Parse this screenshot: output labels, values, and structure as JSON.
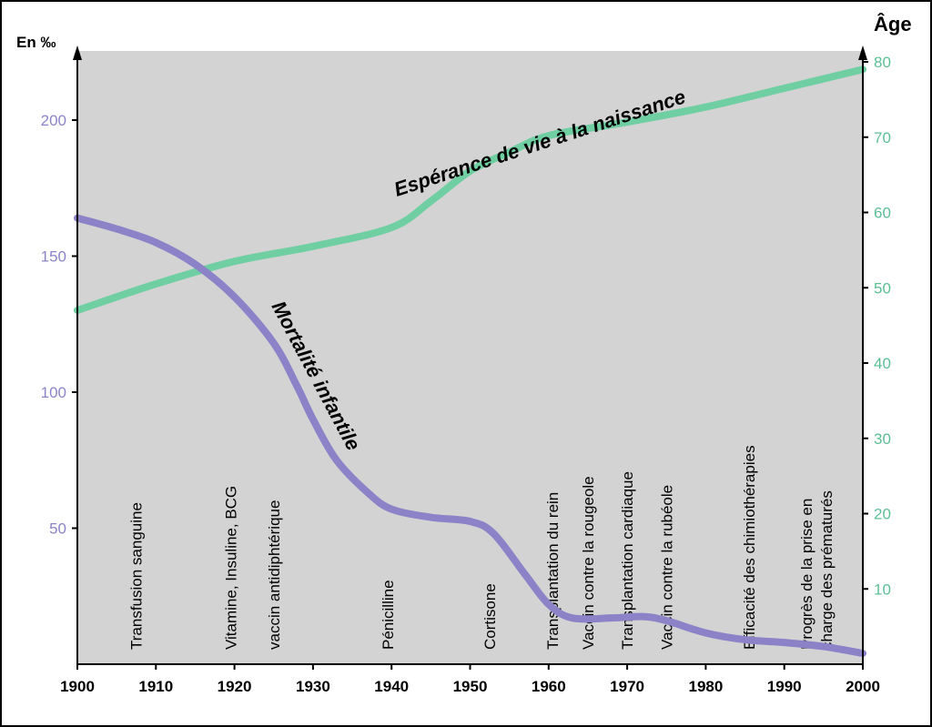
{
  "chart_data": {
    "type": "line",
    "left_axis": {
      "title": "En ‰",
      "ticks": [
        50,
        100,
        150,
        200
      ],
      "range": [
        0,
        225
      ]
    },
    "right_axis": {
      "title": "Âge",
      "ticks": [
        10,
        20,
        30,
        40,
        50,
        60,
        70,
        80
      ],
      "range": [
        0,
        83
      ]
    },
    "x_axis": {
      "ticks": [
        1900,
        1910,
        1920,
        1930,
        1940,
        1950,
        1960,
        1970,
        1980,
        1990,
        2000
      ],
      "range": [
        1900,
        2000
      ]
    },
    "series": [
      {
        "name": "Espérance de vie à la naissance",
        "axis": "right",
        "color": "#6fcfa2",
        "points": [
          [
            1900,
            47
          ],
          [
            1910,
            50.5
          ],
          [
            1920,
            53.5
          ],
          [
            1930,
            55.5
          ],
          [
            1940,
            58
          ],
          [
            1945,
            61.5
          ],
          [
            1950,
            65.5
          ],
          [
            1955,
            68
          ],
          [
            1960,
            70.2
          ],
          [
            1970,
            72
          ],
          [
            1980,
            74
          ],
          [
            1990,
            76.5
          ],
          [
            2000,
            79
          ]
        ]
      },
      {
        "name": "Mortalité infantile",
        "axis": "left",
        "color": "#8b82c8",
        "points": [
          [
            1900,
            164
          ],
          [
            1905,
            160
          ],
          [
            1910,
            155
          ],
          [
            1915,
            147
          ],
          [
            1920,
            135
          ],
          [
            1925,
            118
          ],
          [
            1928,
            102
          ],
          [
            1930,
            90
          ],
          [
            1933,
            75
          ],
          [
            1937,
            63
          ],
          [
            1940,
            57
          ],
          [
            1945,
            54
          ],
          [
            1950,
            52.5
          ],
          [
            1953,
            48
          ],
          [
            1957,
            33
          ],
          [
            1960,
            22
          ],
          [
            1963,
            17
          ],
          [
            1968,
            17
          ],
          [
            1972,
            17.5
          ],
          [
            1975,
            16
          ],
          [
            1980,
            11.5
          ],
          [
            1985,
            9
          ],
          [
            1990,
            8
          ],
          [
            1995,
            6.5
          ],
          [
            2000,
            4
          ]
        ]
      }
    ],
    "events": [
      {
        "year": 1907.5,
        "label": "Transfusion sanguine"
      },
      {
        "year": 1919.5,
        "label": "Vitamine, Insuline, BCG"
      },
      {
        "year": 1925,
        "label": "vaccin antidiphtérique"
      },
      {
        "year": 1939.5,
        "label": "Pénicilline"
      },
      {
        "year": 1952.5,
        "label": "Cortisone"
      },
      {
        "year": 1960.5,
        "label": "Transplantation du rein"
      },
      {
        "year": 1965,
        "label": "Vaccin contre la rougeole"
      },
      {
        "year": 1970,
        "label": "Transplantation cardiaque"
      },
      {
        "year": 1975,
        "label": "Vaccin contre la rubéole"
      },
      {
        "year": 1985.5,
        "label": "Efficacité des chimiothérapies"
      },
      {
        "year": 1994,
        "label": "Progrès de la prise en",
        "label2": "charge des prématurés"
      }
    ],
    "colors": {
      "plot_background": "#d3d3d3",
      "page_background": "#ffffff"
    }
  }
}
